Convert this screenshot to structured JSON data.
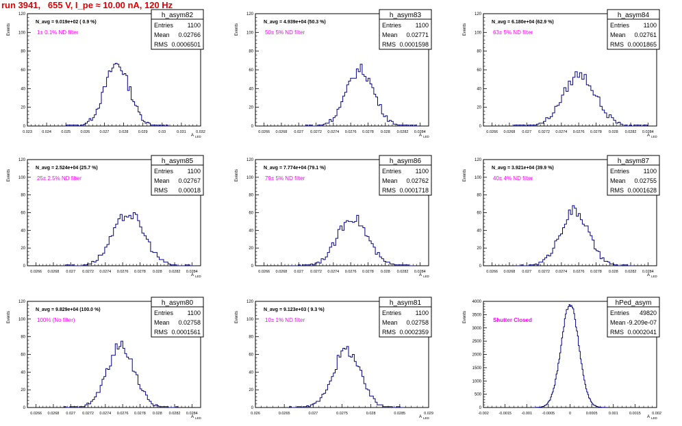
{
  "page": {
    "title": "run 3941,   655 V, I_pe ≈ 10.00 nA, 120 Hz"
  },
  "colors": {
    "histogram": "#000080",
    "filter_label": "#ff00ff",
    "title": "#e00000"
  },
  "common": {
    "ylabel": "Events",
    "xlabel": "A",
    "xlabel_sub": "LED",
    "stats_labels": [
      "Entries",
      "Mean",
      "RMS"
    ]
  },
  "chart_data": [
    {
      "type": "bar",
      "name": "h_asym82",
      "navg": "N_avg = 9.019e+02 ( 0.9 %)",
      "filter": "1± 0.1% ND filter",
      "stats": {
        "entries": "1100",
        "mean": "0.02766",
        "rms": "0.0006501"
      },
      "xlim": [
        0.023,
        0.032
      ],
      "ylim": [
        0,
        120
      ],
      "xticks": [
        "0.023",
        "0.024",
        "0.025",
        "0.026",
        "0.027",
        "0.028",
        "0.029",
        "0.03",
        "0.031",
        "0.032"
      ],
      "yticks": [
        "0",
        "20",
        "40",
        "60",
        "80",
        "100",
        "120"
      ],
      "peak": 66,
      "bins": 60
    },
    {
      "type": "bar",
      "name": "h_asym83",
      "navg": "N_avg = 4.939e+04 (50.3 %)",
      "filter": "50± 5% ND filter",
      "stats": {
        "entries": "1100",
        "mean": "0.02771",
        "rms": "0.0001598"
      },
      "xlim": [
        0.0265,
        0.0285
      ],
      "ylim": [
        0,
        120
      ],
      "xticks": [
        "0.0266",
        "0.0268",
        "0.027",
        "0.0272",
        "0.0274",
        "0.0276",
        "0.0278",
        "0.028",
        "0.0282",
        "0.0284"
      ],
      "yticks": [
        "0",
        "20",
        "40",
        "60",
        "80",
        "100",
        "120"
      ],
      "peak": 60,
      "bins": 60
    },
    {
      "type": "bar",
      "name": "h_asym84",
      "navg": "N_avg = 6.180e+04 (62.9 %)",
      "filter": "63± 5% ND filter",
      "stats": {
        "entries": "1100",
        "mean": "0.02761",
        "rms": "0.0001865"
      },
      "xlim": [
        0.0265,
        0.0285
      ],
      "ylim": [
        0,
        120
      ],
      "xticks": [
        "0.0266",
        "0.0268",
        "0.027",
        "0.0272",
        "0.0274",
        "0.0276",
        "0.0278",
        "0.028",
        "0.0282",
        "0.0284"
      ],
      "yticks": [
        "0",
        "20",
        "40",
        "60",
        "80",
        "100",
        "120"
      ],
      "peak": 55,
      "bins": 60
    },
    {
      "type": "bar",
      "name": "h_asym85",
      "navg": "N_avg = 2.524e+04 (25.7 %)",
      "filter": "25± 2.5% ND filter",
      "stats": {
        "entries": "1100",
        "mean": "0.02767",
        "rms": "0.00018"
      },
      "xlim": [
        0.0265,
        0.0285
      ],
      "ylim": [
        0,
        120
      ],
      "xticks": [
        "0.0266",
        "0.0268",
        "0.027",
        "0.0272",
        "0.0274",
        "0.0276",
        "0.0278",
        "0.028",
        "0.0282",
        "0.0284"
      ],
      "yticks": [
        "0",
        "20",
        "40",
        "60",
        "80",
        "100",
        "120"
      ],
      "peak": 59,
      "bins": 60
    },
    {
      "type": "bar",
      "name": "h_asym86",
      "navg": "N_avg = 7.774e+04 (79.1 %)",
      "filter": "79± 5% ND filter",
      "stats": {
        "entries": "1100",
        "mean": "0.02762",
        "rms": "0.0001718"
      },
      "xlim": [
        0.0265,
        0.0285
      ],
      "ylim": [
        0,
        120
      ],
      "xticks": [
        "0.0266",
        "0.0268",
        "0.027",
        "0.0272",
        "0.0274",
        "0.0276",
        "0.0278",
        "0.028",
        "0.0282",
        "0.0284"
      ],
      "yticks": [
        "0",
        "20",
        "40",
        "60",
        "80",
        "100",
        "120"
      ],
      "peak": 55,
      "bins": 60
    },
    {
      "type": "bar",
      "name": "h_asym87",
      "navg": "N_avg = 3.921e+04 (39.9 %)",
      "filter": "40± 4% ND filter",
      "stats": {
        "entries": "1100",
        "mean": "0.02755",
        "rms": "0.0001628"
      },
      "xlim": [
        0.0265,
        0.0285
      ],
      "ylim": [
        0,
        120
      ],
      "xticks": [
        "0.0266",
        "0.0268",
        "0.027",
        "0.0272",
        "0.0274",
        "0.0276",
        "0.0278",
        "0.028",
        "0.0282",
        "0.0284"
      ],
      "yticks": [
        "0",
        "20",
        "40",
        "60",
        "80",
        "100",
        "120"
      ],
      "peak": 62,
      "bins": 60
    },
    {
      "type": "bar",
      "name": "h_asym80",
      "navg": "N_avg = 9.829e+04 (100.0 %)",
      "filter": "100% (No filter)",
      "stats": {
        "entries": "1100",
        "mean": "0.02758",
        "rms": "0.0001561"
      },
      "xlim": [
        0.0265,
        0.0285
      ],
      "ylim": [
        0,
        120
      ],
      "xticks": [
        "0.0266",
        "0.0268",
        "0.027",
        "0.0272",
        "0.0274",
        "0.0276",
        "0.0278",
        "0.028",
        "0.0282",
        "0.0284"
      ],
      "yticks": [
        "0",
        "20",
        "40",
        "60",
        "80",
        "100",
        "120"
      ],
      "peak": 70,
      "bins": 60
    },
    {
      "type": "bar",
      "name": "h_asym81",
      "navg": "N_avg = 9.123e+03 ( 9.3 %)",
      "filter": "10± 1% ND filter",
      "stats": {
        "entries": "1100",
        "mean": "0.02758",
        "rms": "0.0002359"
      },
      "xlim": [
        0.026,
        0.029
      ],
      "ylim": [
        0,
        120
      ],
      "xticks": [
        "0.026",
        "0.0265",
        "0.027",
        "0.0275",
        "0.028",
        "0.0285",
        "0.029"
      ],
      "yticks": [
        "0",
        "20",
        "40",
        "60",
        "80",
        "100",
        "120"
      ],
      "peak": 65,
      "bins": 60
    },
    {
      "type": "bar",
      "name": "hPed_asym",
      "navg": "",
      "filter": "Shutter Closed",
      "stats": {
        "entries": "49820",
        "mean": "-9.209e-07",
        "rms": "0.0002041"
      },
      "xlim": [
        -0.002,
        0.002
      ],
      "ylim": [
        0,
        4000
      ],
      "xticks": [
        "-0.002",
        "-0.0015",
        "-0.001",
        "-0.0005",
        "0",
        "0.0005",
        "0.001",
        "0.0015",
        "0.002"
      ],
      "yticks": [
        "0",
        "500",
        "1000",
        "1500",
        "2000",
        "2500",
        "3000",
        "3500",
        "4000"
      ],
      "peak": 3900,
      "bins": 80
    }
  ]
}
